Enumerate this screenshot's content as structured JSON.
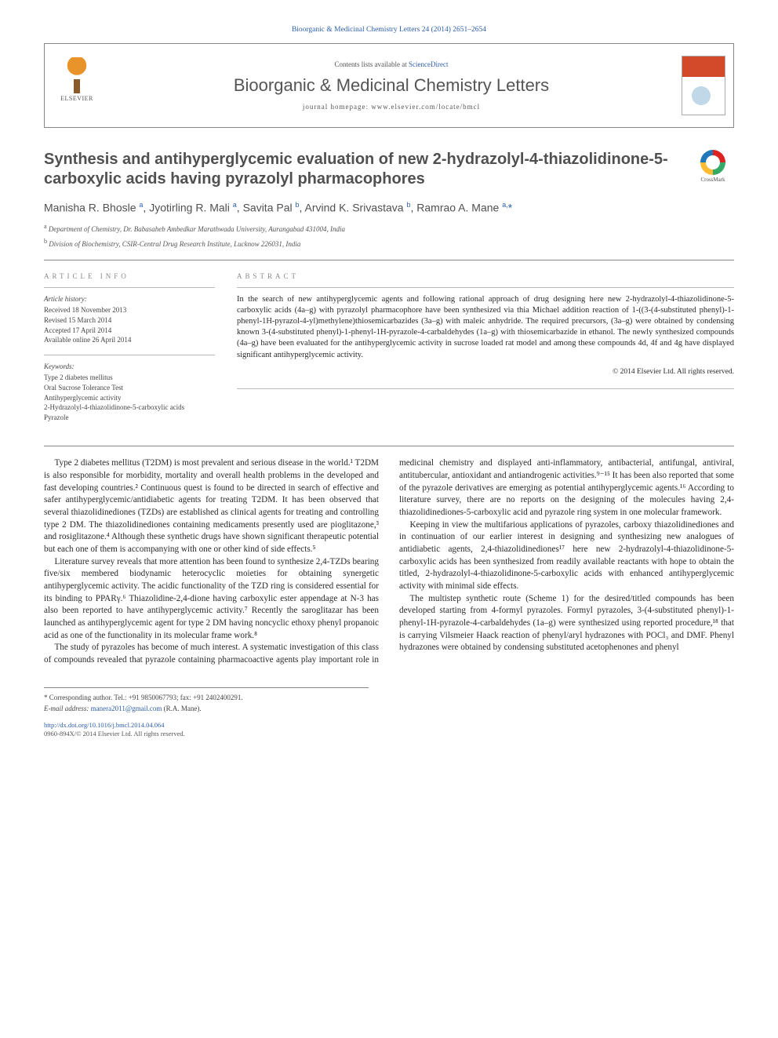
{
  "journal_ref": "Bioorganic & Medicinal Chemistry Letters 24 (2014) 2651–2654",
  "header": {
    "contents_prefix": "Contents lists available at ",
    "contents_link": "ScienceDirect",
    "journal_name": "Bioorganic & Medicinal Chemistry Letters",
    "homepage_prefix": "journal homepage: ",
    "homepage_url": "www.elsevier.com/locate/bmcl",
    "publisher_label": "ELSEVIER"
  },
  "crossmark_label": "CrossMark",
  "title": "Synthesis and antihyperglycemic evaluation of new 2-hydrazolyl-4-thiazolidinone-5-carboxylic acids having pyrazolyl pharmacophores",
  "authors_html": "Manisha R. Bhosle <sup>a</sup>, Jyotirling R. Mali <sup>a</sup>, Savita Pal <sup>b</sup>, Arvind K. Srivastava <sup>b</sup>, Ramrao A. Mane <sup>a,</sup><span class=\"ast\">*</span>",
  "affiliations": {
    "a": "Department of Chemistry, Dr. Babasaheb Ambedkar Marathwada University, Aurangabad 431004, India",
    "b": "Division of Biochemistry, CSIR-Central Drug Research Institute, Lucknow 226031, India"
  },
  "info": {
    "label": "ARTICLE INFO",
    "history_head": "Article history:",
    "history": [
      "Received 18 November 2013",
      "Revised 15 March 2014",
      "Accepted 17 April 2014",
      "Available online 26 April 2014"
    ],
    "keywords_head": "Keywords:",
    "keywords": [
      "Type 2 diabetes mellitus",
      "Oral Sucrose Tolerance Test",
      "Antihyperglycemic activity",
      "2-Hydrazolyl-4-thiazolidinone-5-carboxylic acids",
      "Pyrazole"
    ]
  },
  "abstract": {
    "label": "ABSTRACT",
    "text": "In the search of new antihyperglycemic agents and following rational approach of drug designing here new 2-hydrazolyl-4-thiazolidinone-5-carboxylic acids (4a–g) with pyrazolyl pharmacophore have been synthesized via thia Michael addition reaction of 1-((3-(4-substituted phenyl)-1-phenyl-1H-pyrazol-4-yl)methylene)thiosemicarbazides (3a–g) with maleic anhydride. The required precursors, (3a–g) were obtained by condensing known 3-(4-substituted phenyl)-1-phenyl-1H-pyrazole-4-carbaldehydes (1a–g) with thiosemicarbazide in ethanol. The newly synthesized compounds (4a–g) have been evaluated for the antihyperglycemic activity in sucrose loaded rat model and among these compounds 4d, 4f and 4g have displayed significant antihyperglycemic activity.",
    "copyright": "© 2014 Elsevier Ltd. All rights reserved."
  },
  "body": {
    "p1": "Type 2 diabetes mellitus (T2DM) is most prevalent and serious disease in the world.¹ T2DM is also responsible for morbidity, mortality and overall health problems in the developed and fast developing countries.² Continuous quest is found to be directed in search of effective and safer antihyperglycemic/antidiabetic agents for treating T2DM. It has been observed that several thiazolidinediones (TZDs) are established as clinical agents for treating and controlling type 2 DM. The thiazolidinediones containing medicaments presently used are pioglitazone,³ and rosiglitazone.⁴ Although these synthetic drugs have shown significant therapeutic potential but each one of them is accompanying with one or other kind of side effects.⁵",
    "p2": "Literature survey reveals that more attention has been found to synthesize 2,4-TZDs bearing five/six membered biodynamic heterocyclic moieties for obtaining synergetic antihyperglycemic activity. The acidic functionality of the TZD ring is considered essential for its binding to PPARγ.⁶ Thiazolidine-2,4-dione having carboxylic ester appendage at N-3 has also been reported to have antihyperglycemic activity.⁷ Recently the saroglitazar has been launched as antihyperglycemic agent for type 2 DM having noncyclic ethoxy phenyl propanoic acid as one of the functionality in its molecular frame work.⁸",
    "p3": "The study of pyrazoles has become of much interest. A systematic investigation of this class of compounds revealed that pyrazole containing pharmacoactive agents play important role in medicinal chemistry and displayed anti-inflammatory, antibacterial, antifungal, antiviral, antitubercular, antioxidant and antiandrogenic activities.⁹⁻¹⁵ It has been also reported that some of the pyrazole derivatives are emerging as potential antihyperglycemic agents.¹⁶ According to literature survey, there are no reports on the designing of the molecules having 2,4-thiazolidinediones-5-carboxylic acid and pyrazole ring system in one molecular framework.",
    "p4": "Keeping in view the multifarious applications of pyrazoles, carboxy thiazolidinediones and in continuation of our earlier interest in designing and synthesizing new analogues of antidiabetic agents, 2,4-thiazolidinediones¹⁷ here new 2-hydrazolyl-4-thiazolidinone-5-carboxylic acids has been synthesized from readily available reactants with hope to obtain the titled, 2-hydrazolyl-4-thiazolidinone-5-carboxylic acids with enhanced antihyperglycemic activity with minimal side effects.",
    "p5": "The multistep synthetic route (Scheme 1) for the desired/titled compounds has been developed starting from 4-formyl pyrazoles. Formyl pyrazoles, 3-(4-substituted phenyl)-1-phenyl-1H-pyrazole-4-carbaldehydes (1a–g) were synthesized using reported procedure,¹⁸ that is carrying Vilsmeier Haack reaction of phenyl/aryl hydrazones with POCl₃ and DMF. Phenyl hydrazones were obtained by condensing substituted acetophenones and phenyl"
  },
  "footnotes": {
    "corr": "* Corresponding author. Tel.: +91 9850067793; fax: +91 2402400291.",
    "email_label": "E-mail address:",
    "email": "manera2011@gmail.com",
    "email_person": "(R.A. Mane)."
  },
  "bottom": {
    "doi": "http://dx.doi.org/10.1016/j.bmcl.2014.04.064",
    "issn_line": "0960-894X/© 2014 Elsevier Ltd. All rights reserved."
  },
  "colors": {
    "link": "#2d5faa",
    "text": "#2a2a2a",
    "muted": "#555555",
    "rule": "#888888"
  },
  "typography": {
    "title_fontsize": 20,
    "journal_fontsize": 22,
    "body_fontsize": 11.2,
    "abstract_fontsize": 10.5,
    "info_fontsize": 9,
    "authors_fontsize": 14
  }
}
